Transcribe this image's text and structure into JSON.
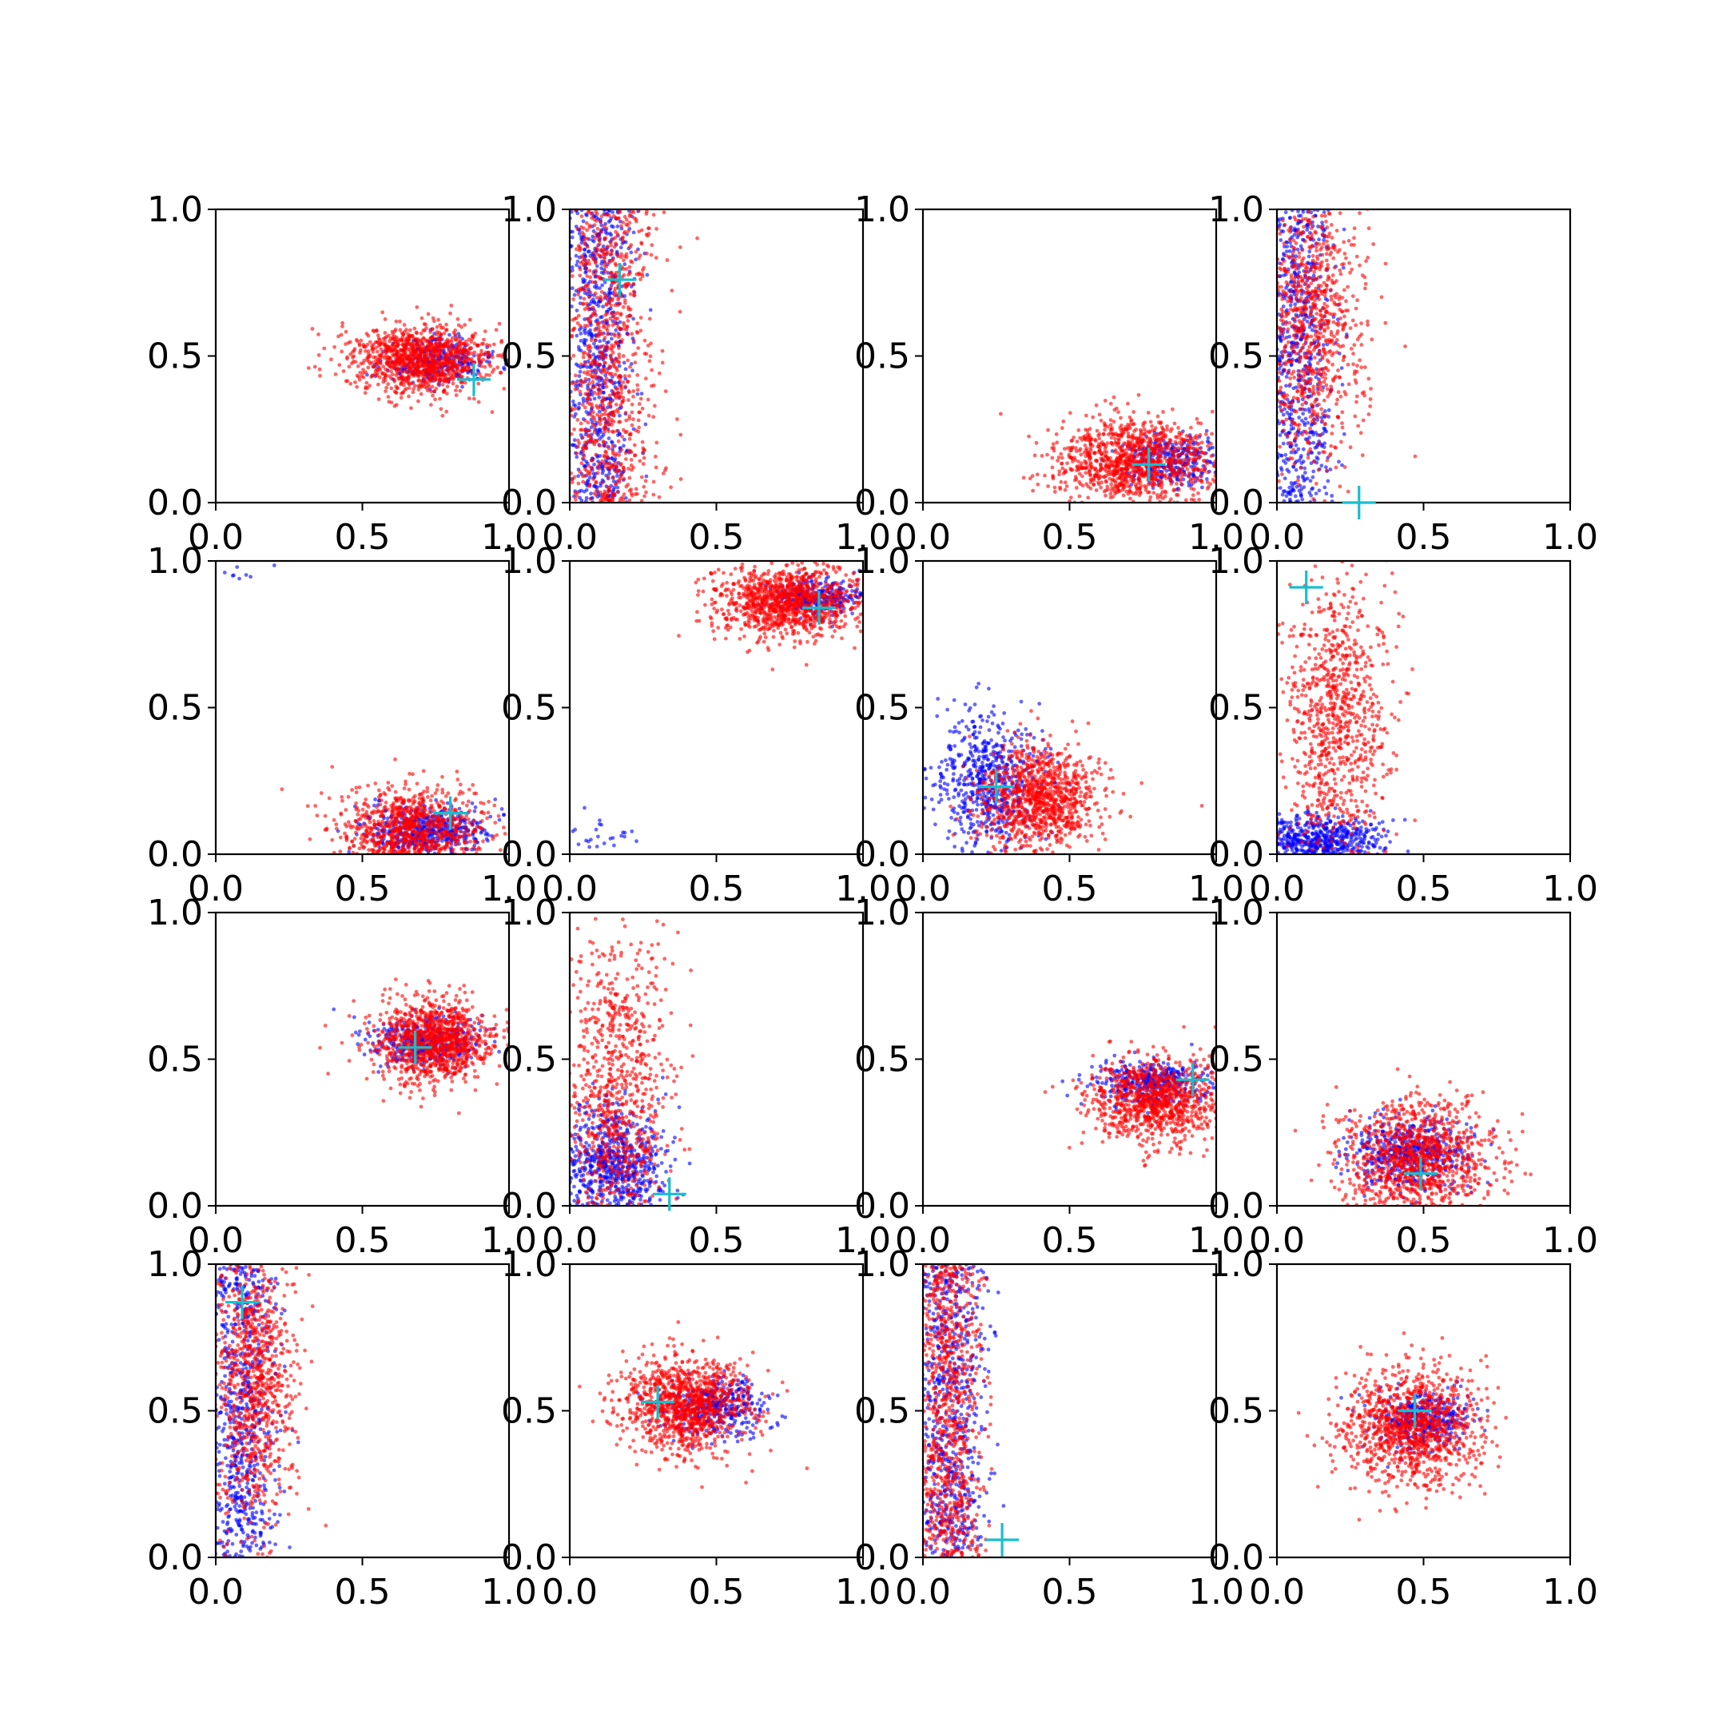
{
  "chart_data": {
    "type": "scatter",
    "layout": "4x4 grid of scatter subplots",
    "colors": {
      "series_blue": "#0000ff",
      "series_red": "#ff0000",
      "marker": "#17becf",
      "axes": "#000000"
    },
    "marker_symbol": "+",
    "xlim": [
      0,
      1
    ],
    "ylim": [
      0,
      1
    ],
    "x_ticks": [
      "0.0",
      "0.5",
      "1.0"
    ],
    "y_ticks": [
      "0.0",
      "0.5",
      "1.0"
    ],
    "grid": false,
    "legend": "none",
    "panels": [
      {
        "row": 0,
        "col": 0,
        "blue": {
          "x_mean": 0.75,
          "x_sd": 0.09,
          "y_mean": 0.48,
          "y_sd": 0.04,
          "n": 300
        },
        "red": {
          "x_mean": 0.7,
          "x_sd": 0.12,
          "y_mean": 0.49,
          "y_sd": 0.06,
          "n": 1100
        },
        "marker": {
          "x": 0.88,
          "y": 0.42
        }
      },
      {
        "row": 0,
        "col": 1,
        "blue": {
          "x_mean": 0.1,
          "x_sd": 0.06,
          "y_mean": 0.5,
          "y_sd": 0.29,
          "n": 700,
          "uniform_y": true
        },
        "red": {
          "x_mean": 0.13,
          "x_sd": 0.08,
          "y_mean": 0.5,
          "y_sd": 0.29,
          "n": 900,
          "uniform_y": true
        },
        "marker": {
          "x": 0.17,
          "y": 0.76
        }
      },
      {
        "row": 0,
        "col": 2,
        "blue": {
          "x_mean": 0.85,
          "x_sd": 0.08,
          "y_mean": 0.14,
          "y_sd": 0.04,
          "n": 300
        },
        "red": {
          "x_mean": 0.72,
          "x_sd": 0.14,
          "y_mean": 0.14,
          "y_sd": 0.07,
          "n": 1100
        },
        "marker": {
          "x": 0.77,
          "y": 0.13
        }
      },
      {
        "row": 0,
        "col": 3,
        "blue": {
          "x_mean": 0.07,
          "x_sd": 0.06,
          "y_mean": 0.5,
          "y_sd": 0.29,
          "n": 700,
          "uniform_y": true
        },
        "red": {
          "x_mean": 0.12,
          "x_sd": 0.09,
          "y_mean": 0.6,
          "y_sd": 0.25,
          "n": 900
        },
        "marker": {
          "x": 0.28,
          "y": 0.0
        }
      },
      {
        "row": 1,
        "col": 0,
        "blue": {
          "x_mean": 0.72,
          "x_sd": 0.1,
          "y_mean": 0.08,
          "y_sd": 0.04,
          "n": 500
        },
        "red": {
          "x_mean": 0.67,
          "x_sd": 0.12,
          "y_mean": 0.09,
          "y_sd": 0.07,
          "n": 900
        },
        "outlier_cluster": {
          "color": "blue",
          "x_mean": 0.1,
          "x_sd": 0.06,
          "y_mean": 0.96,
          "y_sd": 0.02,
          "n": 8
        },
        "marker": {
          "x": 0.8,
          "y": 0.14
        }
      },
      {
        "row": 1,
        "col": 1,
        "blue": {
          "x_mean": 0.85,
          "x_sd": 0.08,
          "y_mean": 0.88,
          "y_sd": 0.03,
          "n": 300
        },
        "red": {
          "x_mean": 0.74,
          "x_sd": 0.12,
          "y_mean": 0.86,
          "y_sd": 0.06,
          "n": 1100
        },
        "outlier_cluster": {
          "color": "blue",
          "x_mean": 0.12,
          "x_sd": 0.06,
          "y_mean": 0.08,
          "y_sd": 0.05,
          "n": 25
        },
        "marker": {
          "x": 0.85,
          "y": 0.84
        }
      },
      {
        "row": 1,
        "col": 2,
        "blue": {
          "x_mean": 0.22,
          "x_sd": 0.09,
          "y_mean": 0.25,
          "y_sd": 0.12,
          "n": 600
        },
        "red": {
          "x_mean": 0.4,
          "x_sd": 0.1,
          "y_mean": 0.19,
          "y_sd": 0.09,
          "n": 1000
        },
        "marker": {
          "x": 0.25,
          "y": 0.23
        }
      },
      {
        "row": 1,
        "col": 3,
        "blue": {
          "x_mean": 0.12,
          "x_sd": 0.12,
          "y_mean": 0.05,
          "y_sd": 0.04,
          "n": 600
        },
        "red": {
          "x_mean": 0.2,
          "x_sd": 0.09,
          "y_mean": 0.45,
          "y_sd": 0.27,
          "n": 900
        },
        "marker": {
          "x": 0.1,
          "y": 0.91
        }
      },
      {
        "row": 2,
        "col": 0,
        "blue": {
          "x_mean": 0.72,
          "x_sd": 0.1,
          "y_mean": 0.56,
          "y_sd": 0.04,
          "n": 400
        },
        "red": {
          "x_mean": 0.75,
          "x_sd": 0.1,
          "y_mean": 0.56,
          "y_sd": 0.07,
          "n": 1100
        },
        "marker": {
          "x": 0.68,
          "y": 0.54
        }
      },
      {
        "row": 2,
        "col": 1,
        "blue": {
          "x_mean": 0.15,
          "x_sd": 0.09,
          "y_mean": 0.14,
          "y_sd": 0.1,
          "n": 700
        },
        "red": {
          "x_mean": 0.16,
          "x_sd": 0.09,
          "y_mean": 0.35,
          "y_sd": 0.28,
          "n": 900
        },
        "marker": {
          "x": 0.34,
          "y": 0.04
        }
      },
      {
        "row": 2,
        "col": 2,
        "blue": {
          "x_mean": 0.78,
          "x_sd": 0.1,
          "y_mean": 0.42,
          "y_sd": 0.04,
          "n": 400
        },
        "red": {
          "x_mean": 0.8,
          "x_sd": 0.11,
          "y_mean": 0.36,
          "y_sd": 0.07,
          "n": 1000
        },
        "marker": {
          "x": 0.92,
          "y": 0.43
        }
      },
      {
        "row": 2,
        "col": 3,
        "blue": {
          "x_mean": 0.45,
          "x_sd": 0.1,
          "y_mean": 0.18,
          "y_sd": 0.06,
          "n": 500
        },
        "red": {
          "x_mean": 0.48,
          "x_sd": 0.13,
          "y_mean": 0.16,
          "y_sd": 0.1,
          "n": 1100
        },
        "marker": {
          "x": 0.49,
          "y": 0.11
        }
      },
      {
        "row": 3,
        "col": 0,
        "blue": {
          "x_mean": 0.09,
          "x_sd": 0.06,
          "y_mean": 0.5,
          "y_sd": 0.29,
          "n": 700,
          "uniform_y": true
        },
        "red": {
          "x_mean": 0.13,
          "x_sd": 0.07,
          "y_mean": 0.6,
          "y_sd": 0.25,
          "n": 900
        },
        "marker": {
          "x": 0.09,
          "y": 0.87
        }
      },
      {
        "row": 3,
        "col": 1,
        "blue": {
          "x_mean": 0.5,
          "x_sd": 0.09,
          "y_mean": 0.51,
          "y_sd": 0.05,
          "n": 400
        },
        "red": {
          "x_mean": 0.4,
          "x_sd": 0.11,
          "y_mean": 0.52,
          "y_sd": 0.08,
          "n": 1100
        },
        "marker": {
          "x": 0.3,
          "y": 0.53
        }
      },
      {
        "row": 3,
        "col": 2,
        "blue": {
          "x_mean": 0.09,
          "x_sd": 0.06,
          "y_mean": 0.5,
          "y_sd": 0.29,
          "n": 700,
          "uniform_y": true
        },
        "red": {
          "x_mean": 0.08,
          "x_sd": 0.06,
          "y_mean": 0.5,
          "y_sd": 0.29,
          "n": 900,
          "uniform_y": true
        },
        "marker": {
          "x": 0.27,
          "y": 0.06
        }
      },
      {
        "row": 3,
        "col": 3,
        "blue": {
          "x_mean": 0.5,
          "x_sd": 0.08,
          "y_mean": 0.47,
          "y_sd": 0.05,
          "n": 400
        },
        "red": {
          "x_mean": 0.46,
          "x_sd": 0.12,
          "y_mean": 0.44,
          "y_sd": 0.1,
          "n": 1100
        },
        "marker": {
          "x": 0.47,
          "y": 0.5
        }
      }
    ]
  }
}
